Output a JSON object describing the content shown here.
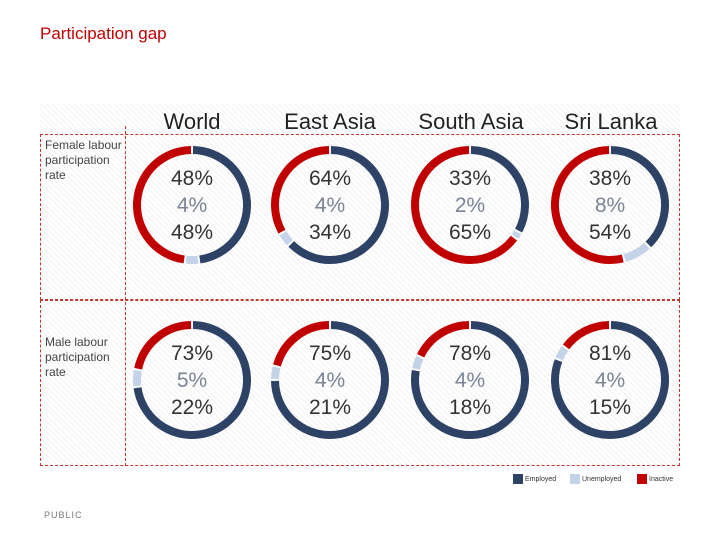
{
  "title": "Participation gap",
  "footer": "PUBLIC",
  "colors": {
    "employed": "#2e4266",
    "unemployed": "#c5d3e8",
    "inactive": "#c00000"
  },
  "chart_data": {
    "type": "pie",
    "style": "donut-grid",
    "regions": [
      "World",
      "East Asia",
      "South Asia",
      "Sri Lanka"
    ],
    "row_labels": [
      "Female labour participation rate",
      "Male labour participation rate"
    ],
    "legend": [
      "Employed",
      "Unemployed",
      "Inactive"
    ],
    "legend_position": "bottom-right",
    "rows": [
      [
        {
          "employed": 48,
          "unemployed": 4,
          "inactive": 48
        },
        {
          "employed": 64,
          "unemployed": 4,
          "inactive": 34
        },
        {
          "employed": 33,
          "unemployed": 2,
          "inactive": 65
        },
        {
          "employed": 38,
          "unemployed": 8,
          "inactive": 54
        }
      ],
      [
        {
          "employed": 73,
          "unemployed": 5,
          "inactive": 22
        },
        {
          "employed": 75,
          "unemployed": 4,
          "inactive": 21
        },
        {
          "employed": 78,
          "unemployed": 4,
          "inactive": 18
        },
        {
          "employed": 81,
          "unemployed": 4,
          "inactive": 15
        }
      ]
    ],
    "value_suffix": "%"
  }
}
